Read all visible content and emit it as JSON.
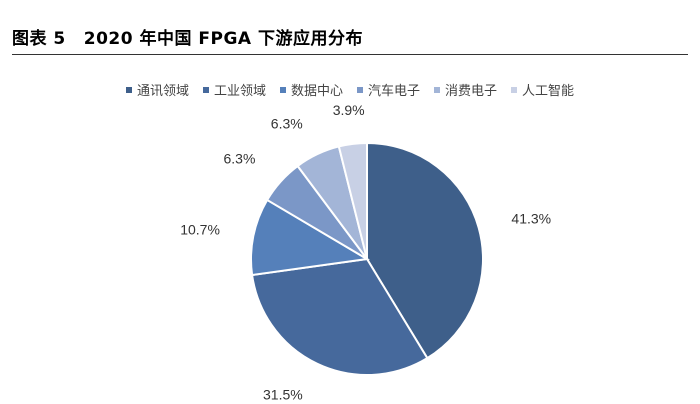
{
  "figure": {
    "number": "图表 5",
    "title": "2020 年中国 FPGA 下游应用分布"
  },
  "colors": [
    "#3e5f8a",
    "#46699c",
    "#5580ba",
    "#7b97c7",
    "#a3b5d7",
    "#c8d0e5"
  ],
  "chart_data": {
    "type": "pie",
    "categories": [
      "通讯领域",
      "工业领域",
      "数据中心",
      "汽车电子",
      "消费电子",
      "人工智能"
    ],
    "values": [
      41.3,
      31.5,
      10.7,
      6.3,
      6.3,
      3.9
    ],
    "data_labels": [
      "41.3%",
      "31.5%",
      "10.7%",
      "6.3%",
      "6.3%",
      "3.9%"
    ],
    "start_angle": "12 o'clock",
    "direction": "clockwise",
    "legend_position": "top"
  }
}
